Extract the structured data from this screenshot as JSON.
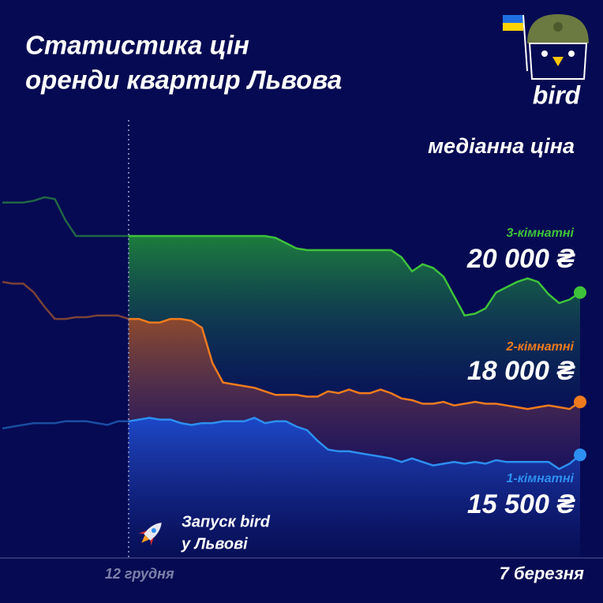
{
  "chart_data": {
    "type": "line",
    "title": [
      "Статистика цін",
      "оренди квартир Львова"
    ],
    "subtitle": "медіанна ціна",
    "logo": "bird",
    "annotation": [
      "Запуск bird",
      "у Львові"
    ],
    "categories": [
      null,
      null,
      null,
      null,
      null,
      null,
      null,
      null,
      null,
      null,
      null,
      null,
      "12 грудня",
      null,
      null,
      null,
      null,
      null,
      null,
      null,
      null,
      null,
      null,
      null,
      null,
      null,
      null,
      null,
      null,
      null,
      null,
      null,
      null,
      null,
      null,
      null,
      null,
      null,
      null,
      null,
      null,
      null,
      null,
      null,
      null,
      null,
      null,
      null,
      null,
      null,
      null,
      null,
      null,
      null,
      null,
      "7 березня"
    ],
    "series": [
      {
        "name": "3-кімнатні",
        "color": "#3ec23a",
        "ylim": [
          12500,
          25000
        ],
        "last_label": "20 000 ₴",
        "values": [
          22550,
          22550,
          22550,
          22600,
          22700,
          22650,
          22050,
          21600,
          21600,
          21600,
          21600,
          21600,
          21600,
          21600,
          21600,
          21600,
          21600,
          21600,
          21600,
          21600,
          21600,
          21600,
          21600,
          21600,
          21600,
          21600,
          21550,
          21400,
          21250,
          21200,
          21200,
          21200,
          21200,
          21200,
          21200,
          21200,
          21200,
          21200,
          21000,
          20600,
          20800,
          20700,
          20450,
          19900,
          19350,
          19400,
          19550,
          20000,
          20150,
          20300,
          20400,
          20300,
          19950,
          19700,
          19800,
          20000
        ]
      },
      {
        "name": "2-кімнатні",
        "color": "#f07b1e",
        "ylim": [
          13600,
          26100
        ],
        "last_label": "18 000 ₴",
        "values": [
          21400,
          21350,
          21350,
          21100,
          20700,
          20350,
          20350,
          20400,
          20400,
          20450,
          20450,
          20450,
          20350,
          20350,
          20250,
          20250,
          20350,
          20350,
          20300,
          20100,
          19100,
          18550,
          18500,
          18450,
          18400,
          18300,
          18200,
          18200,
          18200,
          18150,
          18150,
          18300,
          18250,
          18350,
          18250,
          18250,
          18350,
          18250,
          18100,
          18050,
          17950,
          17950,
          18000,
          17900,
          17950,
          18000,
          17950,
          17950,
          17900,
          17850,
          17800,
          17850,
          17900,
          17850,
          17800,
          18000
        ]
      },
      {
        "name": "1-кімнатні",
        "color": "#2d8ff0",
        "ylim": [
          12600,
          25100
        ],
        "last_label": "15 500 ₴",
        "values": [
          16250,
          16300,
          16350,
          16400,
          16400,
          16400,
          16450,
          16450,
          16450,
          16400,
          16350,
          16450,
          16450,
          16500,
          16550,
          16500,
          16500,
          16400,
          16350,
          16400,
          16400,
          16450,
          16450,
          16450,
          16550,
          16400,
          16450,
          16450,
          16300,
          16200,
          15900,
          15650,
          15600,
          15600,
          15550,
          15500,
          15450,
          15400,
          15300,
          15400,
          15300,
          15200,
          15250,
          15300,
          15250,
          15300,
          15250,
          15350,
          15300,
          15300,
          15300,
          15300,
          15300,
          15100,
          15250,
          15500
        ]
      }
    ]
  }
}
